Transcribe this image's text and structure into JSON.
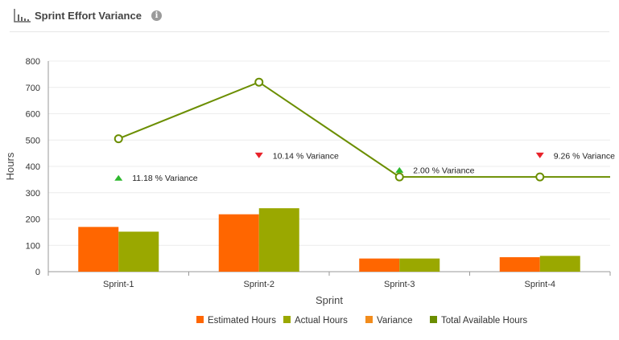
{
  "header": {
    "title": "Sprint Effort Variance",
    "chart_icon": "bar-chart-icon",
    "info_icon": "info-icon",
    "info_glyph": "i"
  },
  "chart_data": {
    "type": "bar",
    "title": "Sprint Effort Variance",
    "xlabel": "Sprint",
    "ylabel": "Hours",
    "categories": [
      "Sprint-1",
      "Sprint-2",
      "Sprint-3",
      "Sprint-4"
    ],
    "ylim": [
      0,
      800
    ],
    "yticks": [
      0,
      100,
      200,
      300,
      400,
      500,
      600,
      700,
      800
    ],
    "grid": true,
    "legend_position": "bottom",
    "series": [
      {
        "name": "Estimated Hours",
        "type": "bar",
        "color": "#ff6600",
        "values": [
          170,
          218,
          50,
          55
        ]
      },
      {
        "name": "Actual Hours",
        "type": "bar",
        "color": "#9aa800",
        "values": [
          152,
          241,
          50,
          60
        ]
      },
      {
        "name": "Variance",
        "type": "marker",
        "color": "#f28c1c",
        "values": [
          11.18,
          10.14,
          2.0,
          9.26
        ],
        "labels": [
          "11.18 % Variance",
          "10.14 % Variance",
          "2.00 % Variance",
          "9.26 % Variance"
        ],
        "direction": [
          "up",
          "down",
          "up",
          "down"
        ],
        "marker_y": [
          355,
          440,
          385,
          440
        ]
      },
      {
        "name": "Total Available Hours",
        "type": "line",
        "color": "#6b8e00",
        "values": [
          505,
          720,
          360,
          360
        ]
      }
    ],
    "marker_colors": {
      "up": "#2eb82e",
      "down": "#e8222a"
    }
  }
}
